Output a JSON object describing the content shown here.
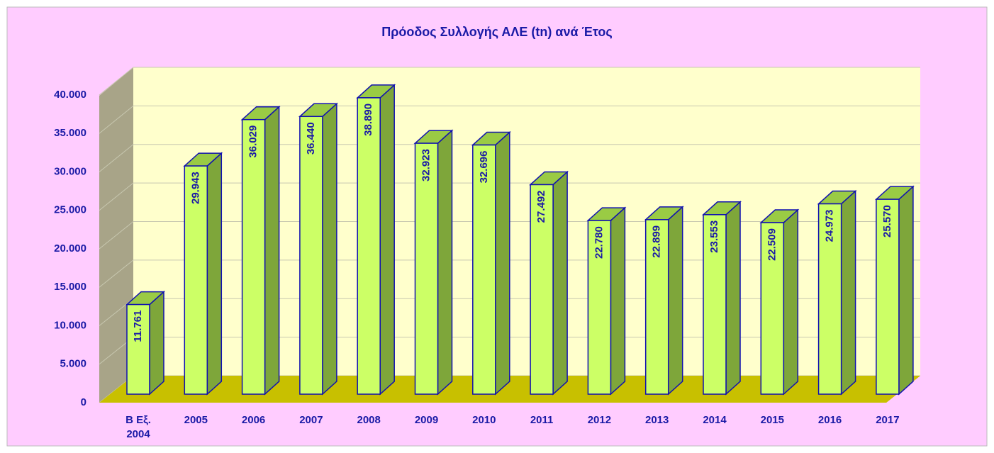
{
  "chart_data": {
    "type": "bar3d",
    "title": "Πρόοδος Συλλογής ΑΛΕ (tn) ανά Έτος",
    "categories": [
      "Β Εξ. 2004",
      "2005",
      "2006",
      "2007",
      "2008",
      "2009",
      "2010",
      "2011",
      "2012",
      "2013",
      "2014",
      "2015",
      "2016",
      "2017"
    ],
    "values": [
      11761,
      29943,
      36029,
      36440,
      38890,
      32923,
      32696,
      27492,
      22780,
      22899,
      23553,
      22509,
      24973,
      25570
    ],
    "value_labels": [
      "11.761",
      "29.943",
      "36.029",
      "36.440",
      "38.890",
      "32.923",
      "32.696",
      "27.492",
      "22.780",
      "22.899",
      "23.553",
      "22.509",
      "24.973",
      "25.570"
    ],
    "color": "#ccff66",
    "ylim": [
      0,
      40000
    ],
    "yticks": [
      0,
      {
        "value": 5000,
        "label": "5.000"
      },
      {
        "value": 10000,
        "label": "10.000"
      },
      {
        "value": 15000,
        "label": "15.000"
      },
      {
        "value": 20000,
        "label": "20.000"
      },
      {
        "value": 25000,
        "label": "25.000"
      },
      {
        "value": 30000,
        "label": "30.000"
      },
      {
        "value": 35000,
        "label": "35.000"
      },
      {
        "value": 40000,
        "label": "40.000"
      }
    ],
    "grid": true
  }
}
